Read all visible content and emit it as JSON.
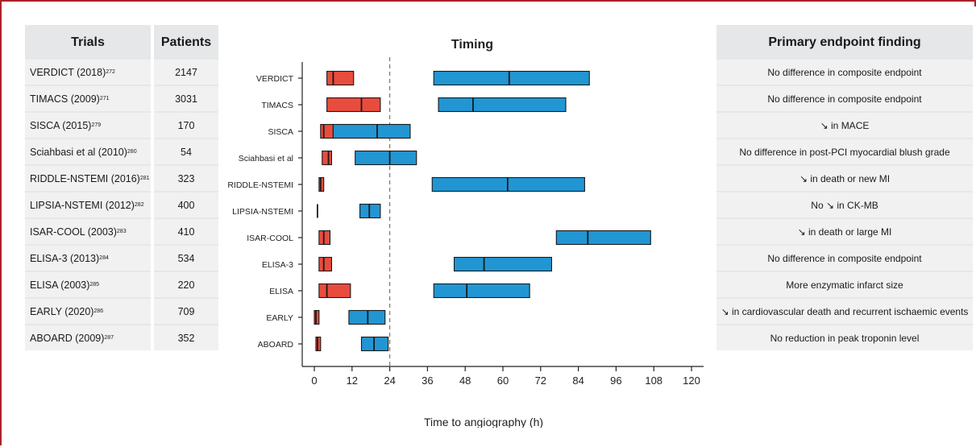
{
  "trials_header": "Trials",
  "patients_header": "Patients",
  "endpoint_header": "Primary endpoint finding",
  "trials": [
    {
      "name": "VERDICT (2018)",
      "ref": "272",
      "patients": "2147",
      "finding": "No difference in composite endpoint"
    },
    {
      "name": "TIMACS (2009)",
      "ref": "271",
      "patients": "3031",
      "finding": "No difference in composite endpoint"
    },
    {
      "name": "SISCA (2015)",
      "ref": "279",
      "patients": "170",
      "finding": "↘ in MACE"
    },
    {
      "name": "Sciahbasi et al (2010)",
      "ref": "280",
      "patients": "54",
      "finding": "No difference in post-PCI myocardial blush grade"
    },
    {
      "name": "RIDDLE-NSTEMI (2016)",
      "ref": "281",
      "patients": "323",
      "finding": "↘ in death or new MI"
    },
    {
      "name": "LIPSIA-NSTEMI (2012)",
      "ref": "282",
      "patients": "400",
      "finding": "No ↘ in CK-MB"
    },
    {
      "name": "ISAR-COOL (2003)",
      "ref": "283",
      "patients": "410",
      "finding": "↘ in death or large MI"
    },
    {
      "name": "ELISA-3 (2013)",
      "ref": "284",
      "patients": "534",
      "finding": "No difference in composite endpoint"
    },
    {
      "name": "ELISA (2003)",
      "ref": "285",
      "patients": "220",
      "finding": "More enzymatic infarct size"
    },
    {
      "name": "EARLY (2020)",
      "ref": "286",
      "patients": "709",
      "finding": "↘ in cardiovascular death and recurrent ischaemic events"
    },
    {
      "name": "ABOARD (2009)",
      "ref": "287",
      "patients": "352",
      "finding": "No reduction in peak troponin level"
    }
  ],
  "chart_data": {
    "type": "bar",
    "title": "Timing",
    "xlabel": "Time to angiography (h)",
    "xlim": [
      0,
      120
    ],
    "xticks": [
      0,
      12,
      24,
      36,
      48,
      60,
      72,
      84,
      96,
      108,
      120
    ],
    "reference_line": 24,
    "categories": [
      "VERDICT",
      "TIMACS",
      "SISCA",
      "Sciahbasi et al",
      "RIDDLE-NSTEMI",
      "LIPSIA-NSTEMI",
      "ISAR-COOL",
      "ELISA-3",
      "ELISA",
      "EARLY",
      "ABOARD"
    ],
    "colors": {
      "early": "#e84c3d",
      "delayed": "#2196d3",
      "edge": "#1a1a1a"
    },
    "series": [
      {
        "values": [
          {
            "low": 4.0,
            "median": 6.0,
            "high": 12.5
          },
          {
            "low": 4.0,
            "median": 15.0,
            "high": 21.0
          },
          {
            "low": 2.0,
            "median": 3.0,
            "high": 6.0
          },
          {
            "low": 2.5,
            "median": 4.5,
            "high": 5.5
          },
          {
            "low": 1.5,
            "median": 2.0,
            "high": 3.0
          },
          {
            "low": 1.0,
            "median": 1.0,
            "high": 1.0
          },
          {
            "low": 1.5,
            "median": 3.0,
            "high": 5.0
          },
          {
            "low": 1.5,
            "median": 3.0,
            "high": 5.5
          },
          {
            "low": 1.5,
            "median": 4.0,
            "high": 11.5
          },
          {
            "low": 0.0,
            "median": 0.5,
            "high": 1.5
          },
          {
            "low": 0.5,
            "median": 1.0,
            "high": 2.0
          }
        ]
      },
      {
        "values": [
          {
            "low": 38.0,
            "median": 62.0,
            "high": 87.5
          },
          {
            "low": 39.5,
            "median": 50.5,
            "high": 80.0
          },
          {
            "low": 6.0,
            "median": 20.0,
            "high": 30.5
          },
          {
            "low": 13.0,
            "median": 24.0,
            "high": 32.5
          },
          {
            "low": 37.5,
            "median": 61.5,
            "high": 86.0
          },
          {
            "low": 14.5,
            "median": 17.5,
            "high": 21.0
          },
          {
            "low": 77.0,
            "median": 87.0,
            "high": 107.0
          },
          {
            "low": 44.5,
            "median": 54.0,
            "high": 75.5
          },
          {
            "low": 38.0,
            "median": 48.5,
            "high": 68.5
          },
          {
            "low": 11.0,
            "median": 17.0,
            "high": 22.5
          },
          {
            "low": 15.0,
            "median": 19.0,
            "high": 23.5
          }
        ]
      }
    ]
  }
}
